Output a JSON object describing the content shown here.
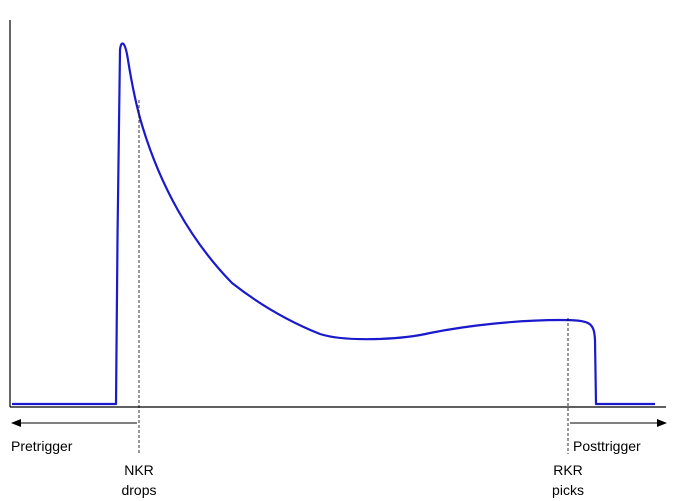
{
  "colors": {
    "curve": "#1a1acc",
    "axis": "#000000",
    "marker": "#000000",
    "background": "#ffffff"
  },
  "labels": {
    "pretrigger": "Pretrigger",
    "posttrigger": "Posttrigger",
    "nkr_line1": "NKR",
    "nkr_line2": "drops",
    "rkr_line1": "RKR",
    "rkr_line2": "picks"
  }
}
